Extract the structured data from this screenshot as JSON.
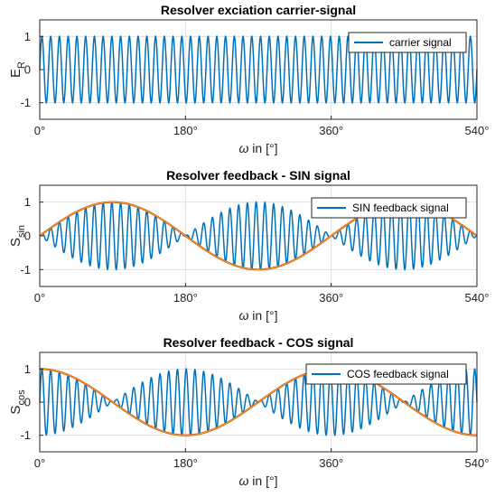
{
  "colors": {
    "signal": "#0072BD",
    "envelope": "#D95319",
    "envelope_inner": "#EDB120"
  },
  "chart_data": [
    {
      "type": "line",
      "title": "Resolver exciation carrier-signal",
      "xlabel_symbol": "ω",
      "xlabel_text": " in [°]",
      "ylabel_main": "E",
      "ylabel_sub": "R",
      "xlim": [
        0,
        540
      ],
      "ylim": [
        -1.5,
        1.5
      ],
      "xticks": [
        "0°",
        "180°",
        "360°",
        "540°"
      ],
      "yticks": [
        "1",
        "0",
        "-1"
      ],
      "grid": true,
      "legend_position": "top-right",
      "series": [
        {
          "name": "carrier signal",
          "function": "sin(f*x)",
          "carrier_cycles_per_540deg": 50,
          "amplitude": 1
        }
      ]
    },
    {
      "type": "line",
      "title": "Resolver feedback - SIN signal",
      "xlabel_symbol": "ω",
      "xlabel_text": " in [°]",
      "ylabel_main": "S",
      "ylabel_sub": "sin",
      "xlim": [
        0,
        540
      ],
      "ylim": [
        -1.5,
        1.5
      ],
      "xticks": [
        "0°",
        "180°",
        "360°",
        "540°"
      ],
      "yticks": [
        "1",
        "0",
        "-1"
      ],
      "grid": true,
      "legend_position": "top-right",
      "series": [
        {
          "name": "SIN feedback signal",
          "function": "sin(f*x)*sin(x)",
          "carrier_cycles_per_540deg": 50,
          "amplitude": 1
        },
        {
          "function": "sin(x)",
          "amplitude": 1
        }
      ]
    },
    {
      "type": "line",
      "title": "Resolver feedback - COS signal",
      "xlabel_symbol": "ω",
      "xlabel_text": " in [°]",
      "ylabel_main": "S",
      "ylabel_sub": "cos",
      "xlim": [
        0,
        540
      ],
      "ylim": [
        -1.5,
        1.5
      ],
      "xticks": [
        "0°",
        "180°",
        "360°",
        "540°"
      ],
      "yticks": [
        "1",
        "0",
        "-1"
      ],
      "grid": true,
      "legend_position": "top-right",
      "series": [
        {
          "name": "COS feedback signal",
          "function": "sin(f*x)*cos(x)",
          "carrier_cycles_per_540deg": 50,
          "amplitude": 1
        },
        {
          "function": "cos(x)",
          "amplitude": 1
        }
      ]
    }
  ]
}
